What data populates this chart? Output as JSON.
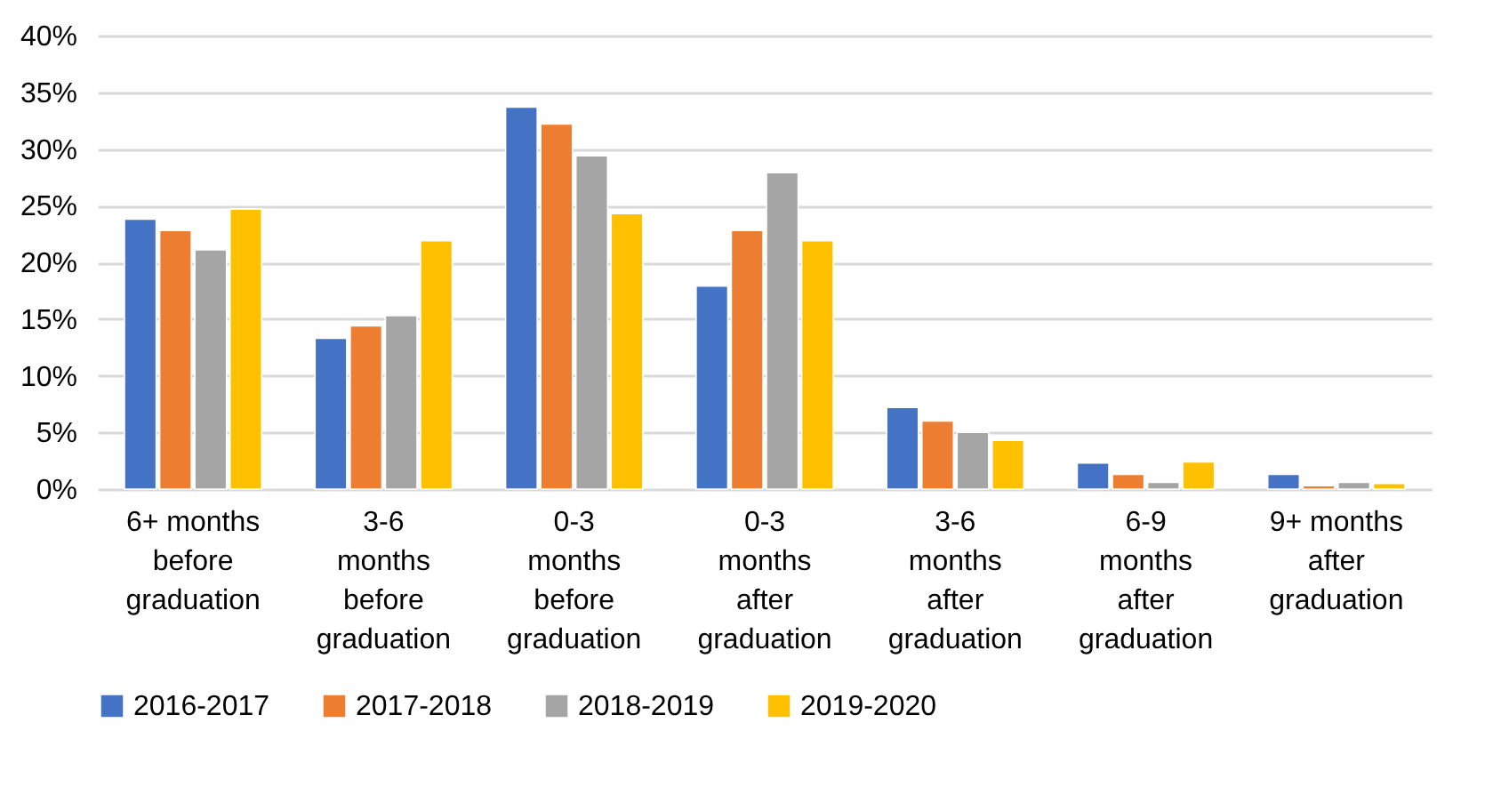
{
  "chart_data": {
    "type": "bar",
    "categories": [
      "6+ months before graduation",
      "3-6 months before graduation",
      "0-3 months before graduation",
      "0-3 months after graduation",
      "3-6 months after graduation",
      "6-9 months after graduation",
      "9+ months after graduation"
    ],
    "series": [
      {
        "name": "2016-2017",
        "color": "#4472c4",
        "values": [
          23.8,
          13.3,
          33.7,
          17.9,
          7.2,
          2.3,
          1.3
        ]
      },
      {
        "name": "2017-2018",
        "color": "#ed7d31",
        "values": [
          22.8,
          14.4,
          32.2,
          22.8,
          6.0,
          1.3,
          0.3
        ]
      },
      {
        "name": "2018-2019",
        "color": "#a5a5a5",
        "values": [
          21.1,
          15.3,
          29.4,
          27.9,
          5.0,
          0.6,
          0.6
        ]
      },
      {
        "name": "2019-2020",
        "color": "#ffc000",
        "values": [
          24.7,
          21.9,
          24.3,
          21.9,
          4.3,
          2.4,
          0.5
        ]
      }
    ],
    "ylim": [
      0,
      40
    ],
    "yticks": [
      {
        "value": 0,
        "label": "0%"
      },
      {
        "value": 5,
        "label": "5%"
      },
      {
        "value": 10,
        "label": "10%"
      },
      {
        "value": 15,
        "label": "15%"
      },
      {
        "value": 20,
        "label": "20%"
      },
      {
        "value": 25,
        "label": "25%"
      },
      {
        "value": 30,
        "label": "30%"
      },
      {
        "value": 35,
        "label": "35%"
      },
      {
        "value": 40,
        "label": "40%"
      }
    ],
    "grid": "y",
    "legend": "bottom"
  }
}
